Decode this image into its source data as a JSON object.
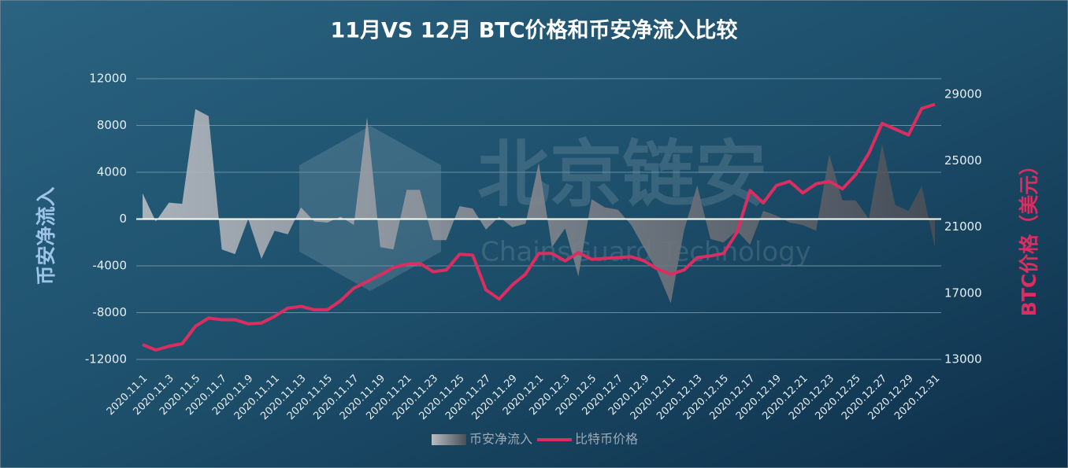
{
  "chart_data": {
    "type": "area-line",
    "title": "11月VS 12月 BTC价格和币安净流入比较",
    "watermark": "北京链安",
    "watermark_sub": "ChainsGuard Technology",
    "ylabel": "币安净流入",
    "y2label": "BTC价格（美元）",
    "categories": [
      "2020.11.1",
      null,
      "2020.11.3",
      null,
      "2020.11.5",
      null,
      "2020.11.7",
      null,
      "2020.11.9",
      null,
      "2020.11.11",
      null,
      "2020.11.13",
      null,
      "2020.11.15",
      null,
      "2020.11.17",
      null,
      "2020.11.19",
      null,
      "2020.11.21",
      null,
      "2020.11.23",
      null,
      "2020.11.25",
      null,
      "2020.11.27",
      null,
      "2020.11.29",
      null,
      "2020.12.1",
      null,
      "2020.12.3",
      null,
      "2020.12.5",
      null,
      "2020.12.7",
      null,
      "2020.12.9",
      null,
      "2020.12.11",
      null,
      "2020.12.13",
      null,
      "2020.12.15",
      null,
      "2020.12.17",
      null,
      "2020.12.19",
      null,
      "2020.12.21",
      null,
      "2020.12.23",
      null,
      "2020.12.25",
      null,
      "2020.12.27",
      null,
      "2020.12.29",
      null,
      "2020.12.31"
    ],
    "series": [
      {
        "name": "币安净流入",
        "color": "#b8bcc3",
        "color_end": "#4a4f57",
        "kind": "area",
        "values": [
          2200,
          -200,
          1400,
          1300,
          9400,
          8800,
          -2600,
          -3000,
          0,
          -3400,
          -1000,
          -1300,
          1000,
          -200,
          -300,
          200,
          -500,
          8700,
          -2400,
          -2600,
          2500,
          2500,
          -1800,
          -1800,
          1100,
          900,
          -900,
          200,
          -700,
          -400,
          4800,
          -2400,
          -800,
          -4900,
          1700,
          1000,
          800,
          -500,
          -2500,
          -4500,
          -7200,
          -1000,
          2900,
          -1700,
          -2000,
          -1000,
          -2200,
          700,
          300,
          -300,
          -500,
          -1000,
          5500,
          1600,
          1600,
          0,
          6400,
          1200,
          700,
          2800,
          -2400
        ]
      },
      {
        "name": "比特币价格",
        "color": "#d92e5f",
        "kind": "line",
        "axis": "y2",
        "values": [
          13900,
          13570,
          13800,
          13950,
          15000,
          15500,
          15400,
          15400,
          15150,
          15200,
          15600,
          16100,
          16200,
          16000,
          16000,
          16550,
          17300,
          17700,
          18100,
          18550,
          18750,
          18800,
          18300,
          18400,
          19350,
          19300,
          17200,
          16650,
          17500,
          18150,
          19400,
          19400,
          18950,
          19450,
          19050,
          19100,
          19150,
          19200,
          18950,
          18450,
          18150,
          18400,
          19150,
          19250,
          19400,
          20650,
          23200,
          22450,
          23500,
          23750,
          23050,
          23600,
          23750,
          23300,
          24150,
          25450,
          27250,
          26900,
          26550,
          28150,
          28400
        ]
      }
    ],
    "ylim": [
      -12000,
      12000
    ],
    "yticks": [
      -12000,
      -8000,
      -4000,
      0,
      4000,
      8000,
      12000
    ],
    "y2lim": [
      13000,
      29950
    ],
    "y2ticks": [
      13000,
      17000,
      21000,
      25000,
      29000
    ],
    "grid": true,
    "legend": "bottom"
  }
}
